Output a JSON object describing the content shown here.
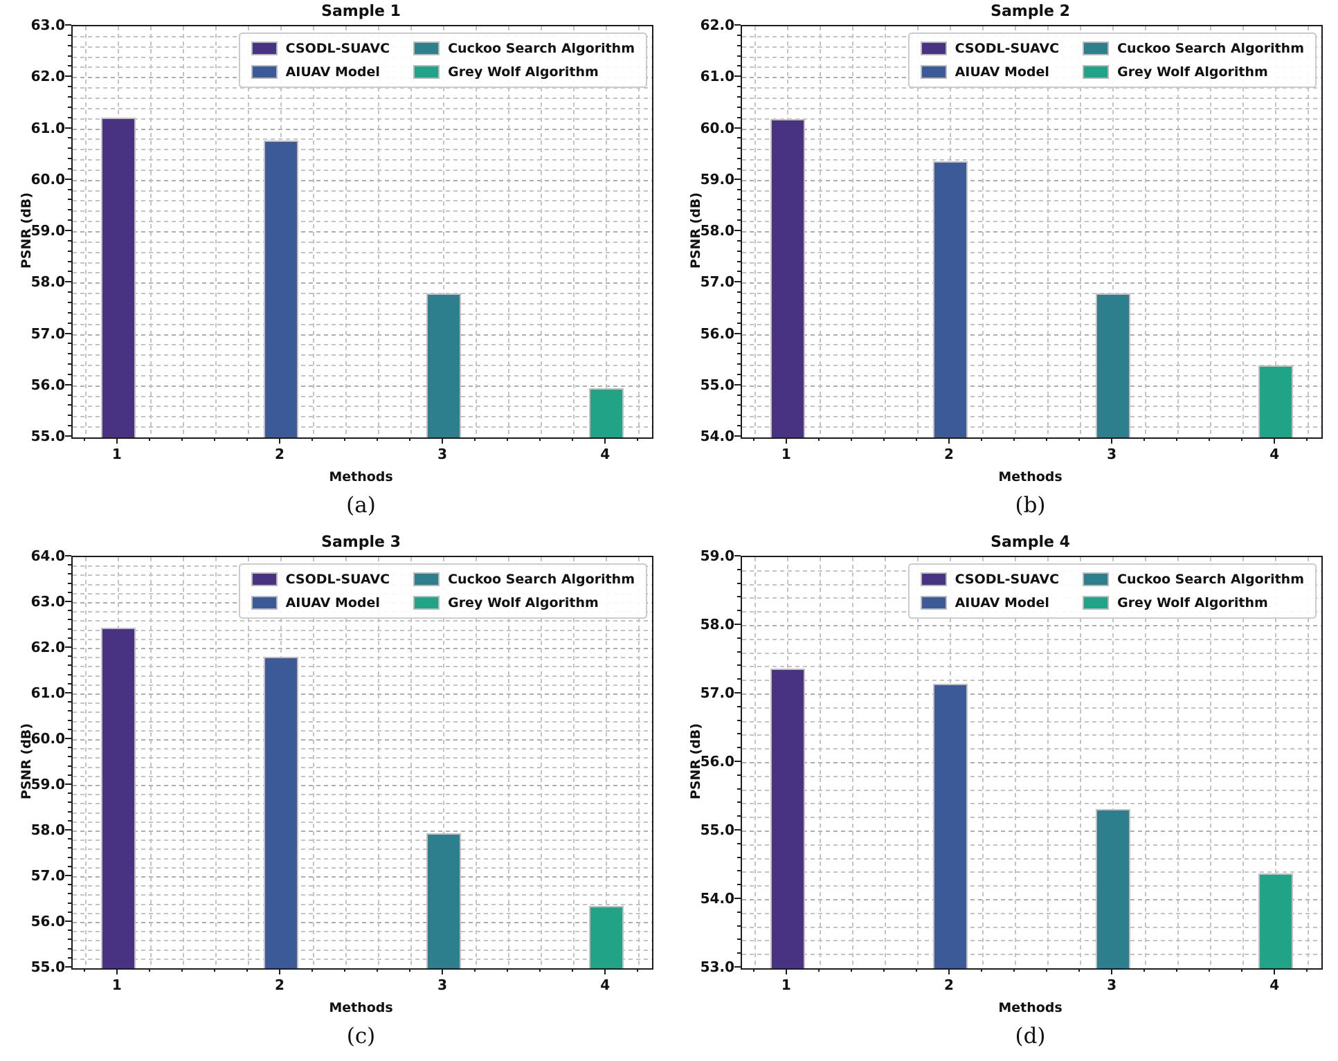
{
  "chart_data": {
    "type": "bar",
    "layout": "2x2-grid",
    "xlabel": "Methods",
    "ylabel": "PSNR (dB)",
    "categories": [
      "1",
      "2",
      "3",
      "4"
    ],
    "grid": {
      "style": "dashed",
      "y_minor_step": 0.2,
      "x_minor_step": 0.2,
      "color": "#c3c3c3"
    },
    "legend_position": "upper right",
    "legend": [
      {
        "label": "CSODL-SUAVC",
        "color": "#483282"
      },
      {
        "label": "AIUAV Model",
        "color": "#3c5a97"
      },
      {
        "label": "Cuckoo Search Algorithm",
        "color": "#2d7f8e"
      },
      {
        "label": "Grey Wolf Algorithm",
        "color": "#20a387"
      }
    ],
    "charts": [
      {
        "title": "Sample 1",
        "caption": "(a)",
        "ylim": [
          55.0,
          63.0
        ],
        "ytick_step": 1.0,
        "values": [
          61.22,
          60.78,
          57.8,
          55.96
        ]
      },
      {
        "title": "Sample 2",
        "caption": "(b)",
        "ylim": [
          54.0,
          62.0
        ],
        "ytick_step": 1.0,
        "values": [
          60.2,
          59.38,
          56.8,
          55.4
        ]
      },
      {
        "title": "Sample 3",
        "caption": "(c)",
        "ylim": [
          55.0,
          64.0
        ],
        "ytick_step": 1.0,
        "values": [
          62.45,
          61.82,
          57.95,
          56.37
        ]
      },
      {
        "title": "Sample 4",
        "caption": "(d)",
        "ylim": [
          53.0,
          59.0
        ],
        "ytick_step": 1.0,
        "values": [
          57.37,
          57.15,
          55.32,
          54.38
        ]
      }
    ]
  }
}
